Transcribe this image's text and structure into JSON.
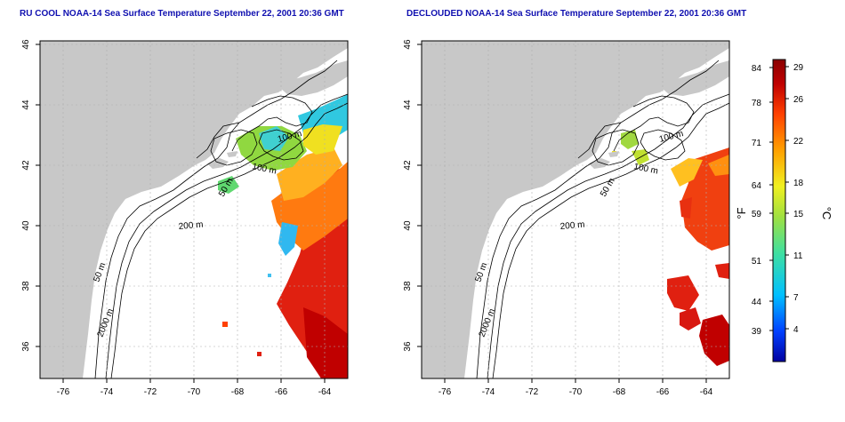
{
  "panels": [
    {
      "title": "RU COOL NOAA-14 Sea Surface Temperature September 22, 2001 20:36 GMT",
      "contour_labels": [
        "100 m",
        "100 m",
        "50 m",
        "200 m",
        "50 m",
        "2000 m"
      ]
    },
    {
      "title": "DECLOUDED NOAA-14 Sea Surface Temperature September 22, 2001 20:36 GMT",
      "contour_labels": [
        "100 m",
        "100 m",
        "50 m",
        "200 m",
        "50 m",
        "2000 m"
      ]
    }
  ],
  "axes": {
    "x_ticks": [
      "-76",
      "-74",
      "-72",
      "-70",
      "-68",
      "-66",
      "-64"
    ],
    "y_ticks": [
      "36",
      "38",
      "40",
      "42",
      "44",
      "46"
    ]
  },
  "colorbar": {
    "fahrenheit_unit": "°F",
    "celsius_unit": "°C",
    "fahrenheit_ticks": [
      "84",
      "78",
      "71",
      "64",
      "59",
      "51",
      "44",
      "39"
    ],
    "celsius_ticks": [
      "29",
      "26",
      "22",
      "18",
      "15",
      "11",
      "7",
      "4"
    ],
    "colors": [
      "#0000a0",
      "#0040ff",
      "#00c0ff",
      "#40e0a0",
      "#a0e040",
      "#f0f020",
      "#ffa000",
      "#ff4000",
      "#c00000",
      "#8a0000"
    ]
  },
  "colors": {
    "land": "#c8c8c8",
    "ocean": "#ffffff",
    "title": "#1010b0",
    "grid": "#b0b0b0",
    "contour": "#000000"
  }
}
